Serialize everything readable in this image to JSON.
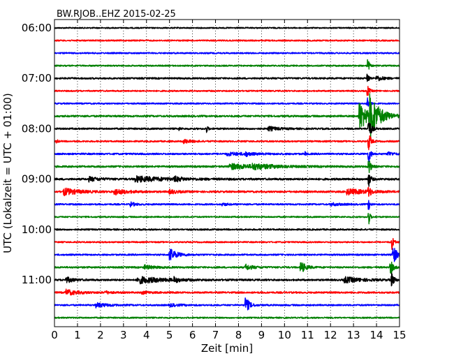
{
  "chart_data": {
    "type": "line",
    "title": "BW.RJOB..EHZ 2015-02-25",
    "xlabel": "Zeit  [min]",
    "ylabel": "UTC (Lokalzeit = UTC + 01:00)",
    "xlim": [
      0,
      15
    ],
    "x_ticks": [
      "0",
      "1",
      "2",
      "3",
      "4",
      "5",
      "6",
      "7",
      "8",
      "9",
      "10",
      "11",
      "12",
      "13",
      "14",
      "15"
    ],
    "y_tick_labels": [
      "06:00",
      "07:00",
      "08:00",
      "09:00",
      "10:00",
      "11:00"
    ],
    "grid": true,
    "trace_interval_min": 15,
    "trace_colors": [
      "#000000",
      "#ff0000",
      "#0000ff",
      "#008000"
    ],
    "traces": [
      {
        "start": "06:00",
        "noise": 0.9,
        "events": []
      },
      {
        "start": "06:15",
        "noise": 1.0,
        "events": []
      },
      {
        "start": "06:30",
        "noise": 1.0,
        "events": []
      },
      {
        "start": "06:45",
        "noise": 1.0,
        "events": [
          {
            "t": 13.62,
            "amp": 14,
            "dur": 0.05
          }
        ]
      },
      {
        "start": "07:00",
        "noise": 1.2,
        "events": [
          {
            "t": 13.6,
            "amp": 11,
            "dur": 0.06
          },
          {
            "t": 14.0,
            "amp": 4,
            "dur": 0.25
          }
        ]
      },
      {
        "start": "07:15",
        "noise": 1.0,
        "events": [
          {
            "t": 13.6,
            "amp": 9,
            "dur": 0.08
          }
        ]
      },
      {
        "start": "07:30",
        "noise": 1.0,
        "events": [
          {
            "t": 13.6,
            "amp": 8,
            "dur": 0.08
          }
        ]
      },
      {
        "start": "07:45",
        "noise": 1.3,
        "events": [
          {
            "t": 13.25,
            "amp": 22,
            "dur": 0.35
          },
          {
            "t": 13.7,
            "amp": 28,
            "dur": 0.4
          }
        ]
      },
      {
        "start": "08:00",
        "noise": 1.2,
        "events": [
          {
            "t": 5.4,
            "amp": 2,
            "dur": 0.08
          },
          {
            "t": 6.6,
            "amp": 6,
            "dur": 0.06
          },
          {
            "t": 9.3,
            "amp": 3,
            "dur": 0.4
          },
          {
            "t": 13.65,
            "amp": 18,
            "dur": 0.1
          }
        ]
      },
      {
        "start": "08:15",
        "noise": 1.1,
        "events": [
          {
            "t": 0.1,
            "amp": 3,
            "dur": 0.05
          },
          {
            "t": 5.6,
            "amp": 3,
            "dur": 0.3
          },
          {
            "t": 13.65,
            "amp": 16,
            "dur": 0.08
          }
        ]
      },
      {
        "start": "08:30",
        "noise": 1.2,
        "events": [
          {
            "t": 7.5,
            "amp": 2,
            "dur": 0.9
          },
          {
            "t": 8.3,
            "amp": 3,
            "dur": 0.15
          },
          {
            "t": 10.9,
            "amp": 3,
            "dur": 0.05
          },
          {
            "t": 13.65,
            "amp": 14,
            "dur": 0.08
          },
          {
            "t": 14.5,
            "amp": 3,
            "dur": 0.2
          }
        ]
      },
      {
        "start": "08:45",
        "noise": 1.3,
        "events": [
          {
            "t": 7.6,
            "amp": 4,
            "dur": 1.1
          },
          {
            "t": 8.6,
            "amp": 3,
            "dur": 0.8
          },
          {
            "t": 13.65,
            "amp": 14,
            "dur": 0.08
          }
        ]
      },
      {
        "start": "09:00",
        "noise": 1.4,
        "events": [
          {
            "t": 1.5,
            "amp": 3,
            "dur": 0.4
          },
          {
            "t": 3.5,
            "amp": 4,
            "dur": 1.2
          },
          {
            "t": 5.2,
            "amp": 3,
            "dur": 0.3
          },
          {
            "t": 13.65,
            "amp": 12,
            "dur": 0.08
          }
        ]
      },
      {
        "start": "09:15",
        "noise": 1.3,
        "events": [
          {
            "t": 0.4,
            "amp": 5,
            "dur": 0.6
          },
          {
            "t": 2.6,
            "amp": 4,
            "dur": 0.5
          },
          {
            "t": 5.0,
            "amp": 3,
            "dur": 0.3
          },
          {
            "t": 12.7,
            "amp": 4,
            "dur": 0.8
          },
          {
            "t": 13.65,
            "amp": 10,
            "dur": 0.08
          }
        ]
      },
      {
        "start": "09:30",
        "noise": 1.1,
        "events": [
          {
            "t": 3.3,
            "amp": 3,
            "dur": 0.2
          },
          {
            "t": 7.3,
            "amp": 2,
            "dur": 0.2
          },
          {
            "t": 12.0,
            "amp": 2,
            "dur": 0.4
          },
          {
            "t": 13.65,
            "amp": 9,
            "dur": 0.06
          }
        ]
      },
      {
        "start": "09:45",
        "noise": 1.0,
        "events": [
          {
            "t": 13.65,
            "amp": 16,
            "dur": 0.05
          }
        ]
      },
      {
        "start": "10:00",
        "noise": 1.1,
        "events": []
      },
      {
        "start": "10:15",
        "noise": 1.0,
        "events": [
          {
            "t": 14.65,
            "amp": 12,
            "dur": 0.08
          }
        ]
      },
      {
        "start": "10:30",
        "noise": 1.1,
        "events": [
          {
            "t": 5.0,
            "amp": 9,
            "dur": 0.3
          },
          {
            "t": 14.7,
            "amp": 16,
            "dur": 0.15
          }
        ]
      },
      {
        "start": "10:45",
        "noise": 1.2,
        "events": [
          {
            "t": 3.9,
            "amp": 3,
            "dur": 0.4
          },
          {
            "t": 8.3,
            "amp": 4,
            "dur": 0.3
          },
          {
            "t": 10.7,
            "amp": 9,
            "dur": 0.2
          },
          {
            "t": 14.6,
            "amp": 12,
            "dur": 0.1
          }
        ]
      },
      {
        "start": "11:00",
        "noise": 1.3,
        "events": [
          {
            "t": 0.5,
            "amp": 4,
            "dur": 0.3
          },
          {
            "t": 3.6,
            "amp": 5,
            "dur": 1.0
          },
          {
            "t": 5.2,
            "amp": 3,
            "dur": 0.2
          },
          {
            "t": 12.6,
            "amp": 4,
            "dur": 0.7
          },
          {
            "t": 14.65,
            "amp": 10,
            "dur": 0.1
          }
        ]
      },
      {
        "start": "11:15",
        "noise": 1.2,
        "events": [
          {
            "t": 0.5,
            "amp": 4,
            "dur": 0.5
          },
          {
            "t": 2.2,
            "amp": 2,
            "dur": 0.2
          },
          {
            "t": 3.8,
            "amp": 2,
            "dur": 0.3
          }
        ]
      },
      {
        "start": "11:30",
        "noise": 1.1,
        "events": [
          {
            "t": 1.8,
            "amp": 3,
            "dur": 0.5
          },
          {
            "t": 5.0,
            "amp": 2,
            "dur": 0.4
          },
          {
            "t": 8.3,
            "amp": 13,
            "dur": 0.15
          }
        ]
      },
      {
        "start": "11:45",
        "noise": 1.0,
        "events": []
      }
    ]
  }
}
